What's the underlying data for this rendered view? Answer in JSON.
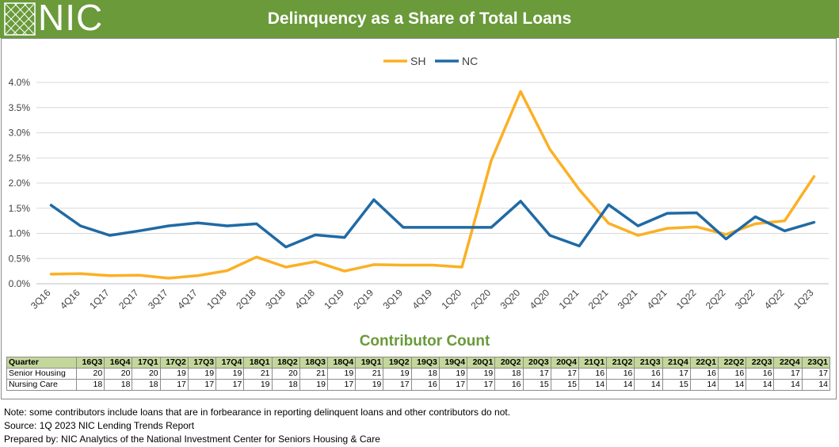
{
  "header": {
    "logo_text": "NIC",
    "title": "Delinquency as a Share of Total Loans"
  },
  "colors": {
    "header_bg": "#6a9a3a",
    "sh": "#fbb025",
    "nc": "#1f6aa5",
    "table_header": "#c4d79b"
  },
  "chart_data": {
    "type": "line",
    "categories": [
      "3Q16",
      "4Q16",
      "1Q17",
      "2Q17",
      "3Q17",
      "4Q17",
      "1Q18",
      "2Q18",
      "3Q18",
      "4Q18",
      "1Q19",
      "2Q19",
      "3Q19",
      "4Q19",
      "1Q20",
      "2Q20",
      "3Q20",
      "4Q20",
      "1Q21",
      "2Q21",
      "3Q21",
      "4Q21",
      "1Q22",
      "2Q22",
      "3Q22",
      "4Q22",
      "1Q23"
    ],
    "series": [
      {
        "name": "SH",
        "color": "#fbb025",
        "values": [
          0.19,
          0.2,
          0.16,
          0.17,
          0.11,
          0.16,
          0.26,
          0.53,
          0.33,
          0.44,
          0.25,
          0.38,
          0.37,
          0.37,
          0.33,
          2.45,
          3.82,
          2.67,
          1.87,
          1.2,
          0.96,
          1.1,
          1.13,
          0.98,
          1.19,
          1.25,
          2.13
        ]
      },
      {
        "name": "NC",
        "color": "#1f6aa5",
        "values": [
          1.56,
          1.15,
          0.96,
          1.05,
          1.15,
          1.21,
          1.15,
          1.19,
          0.73,
          0.97,
          0.92,
          1.67,
          1.12,
          1.12,
          1.12,
          1.12,
          1.64,
          0.96,
          0.75,
          1.57,
          1.15,
          1.4,
          1.41,
          0.89,
          1.33,
          1.05,
          1.22
        ]
      }
    ],
    "ylim": [
      0,
      4.0
    ],
    "y_ticks": [
      "0.0%",
      "0.5%",
      "1.0%",
      "1.5%",
      "2.0%",
      "2.5%",
      "3.0%",
      "3.5%",
      "4.0%"
    ],
    "grid": true,
    "legend": "top-center"
  },
  "contributor": {
    "title": "Contributor Count",
    "quarter_label": "Quarter",
    "quarters": [
      "16Q3",
      "16Q4",
      "17Q1",
      "17Q2",
      "17Q3",
      "17Q4",
      "18Q1",
      "18Q2",
      "18Q3",
      "18Q4",
      "19Q1",
      "19Q2",
      "19Q3",
      "19Q4",
      "20Q1",
      "20Q2",
      "20Q3",
      "20Q4",
      "21Q1",
      "21Q2",
      "21Q3",
      "21Q4",
      "22Q1",
      "22Q2",
      "22Q3",
      "22Q4",
      "23Q1"
    ],
    "rows": [
      {
        "label": "Senior Housing",
        "values": [
          "20",
          "20",
          "20",
          "19",
          "19",
          "19",
          "21",
          "20",
          "21",
          "19",
          "21",
          "19",
          "18",
          "19",
          "19",
          "18",
          "17",
          "17",
          "16",
          "16",
          "16",
          "17",
          "16",
          "16",
          "16",
          "17",
          "17"
        ]
      },
      {
        "label": "Nursing Care",
        "values": [
          "18",
          "18",
          "18",
          "17",
          "17",
          "17",
          "19",
          "18",
          "19",
          "17",
          "19",
          "17",
          "16",
          "17",
          "17",
          "16",
          "15",
          "15",
          "14",
          "14",
          "14",
          "15",
          "14",
          "14",
          "14",
          "14",
          "14"
        ]
      }
    ]
  },
  "notes": {
    "line1": "Note: some contributors include loans that are in forbearance in reporting delinquent loans and other contributors do not.",
    "line2": "Source: 1Q 2023 NIC Lending Trends Report",
    "line3": "Prepared by: NIC Analytics of the National Investment Center for Seniors Housing & Care"
  }
}
